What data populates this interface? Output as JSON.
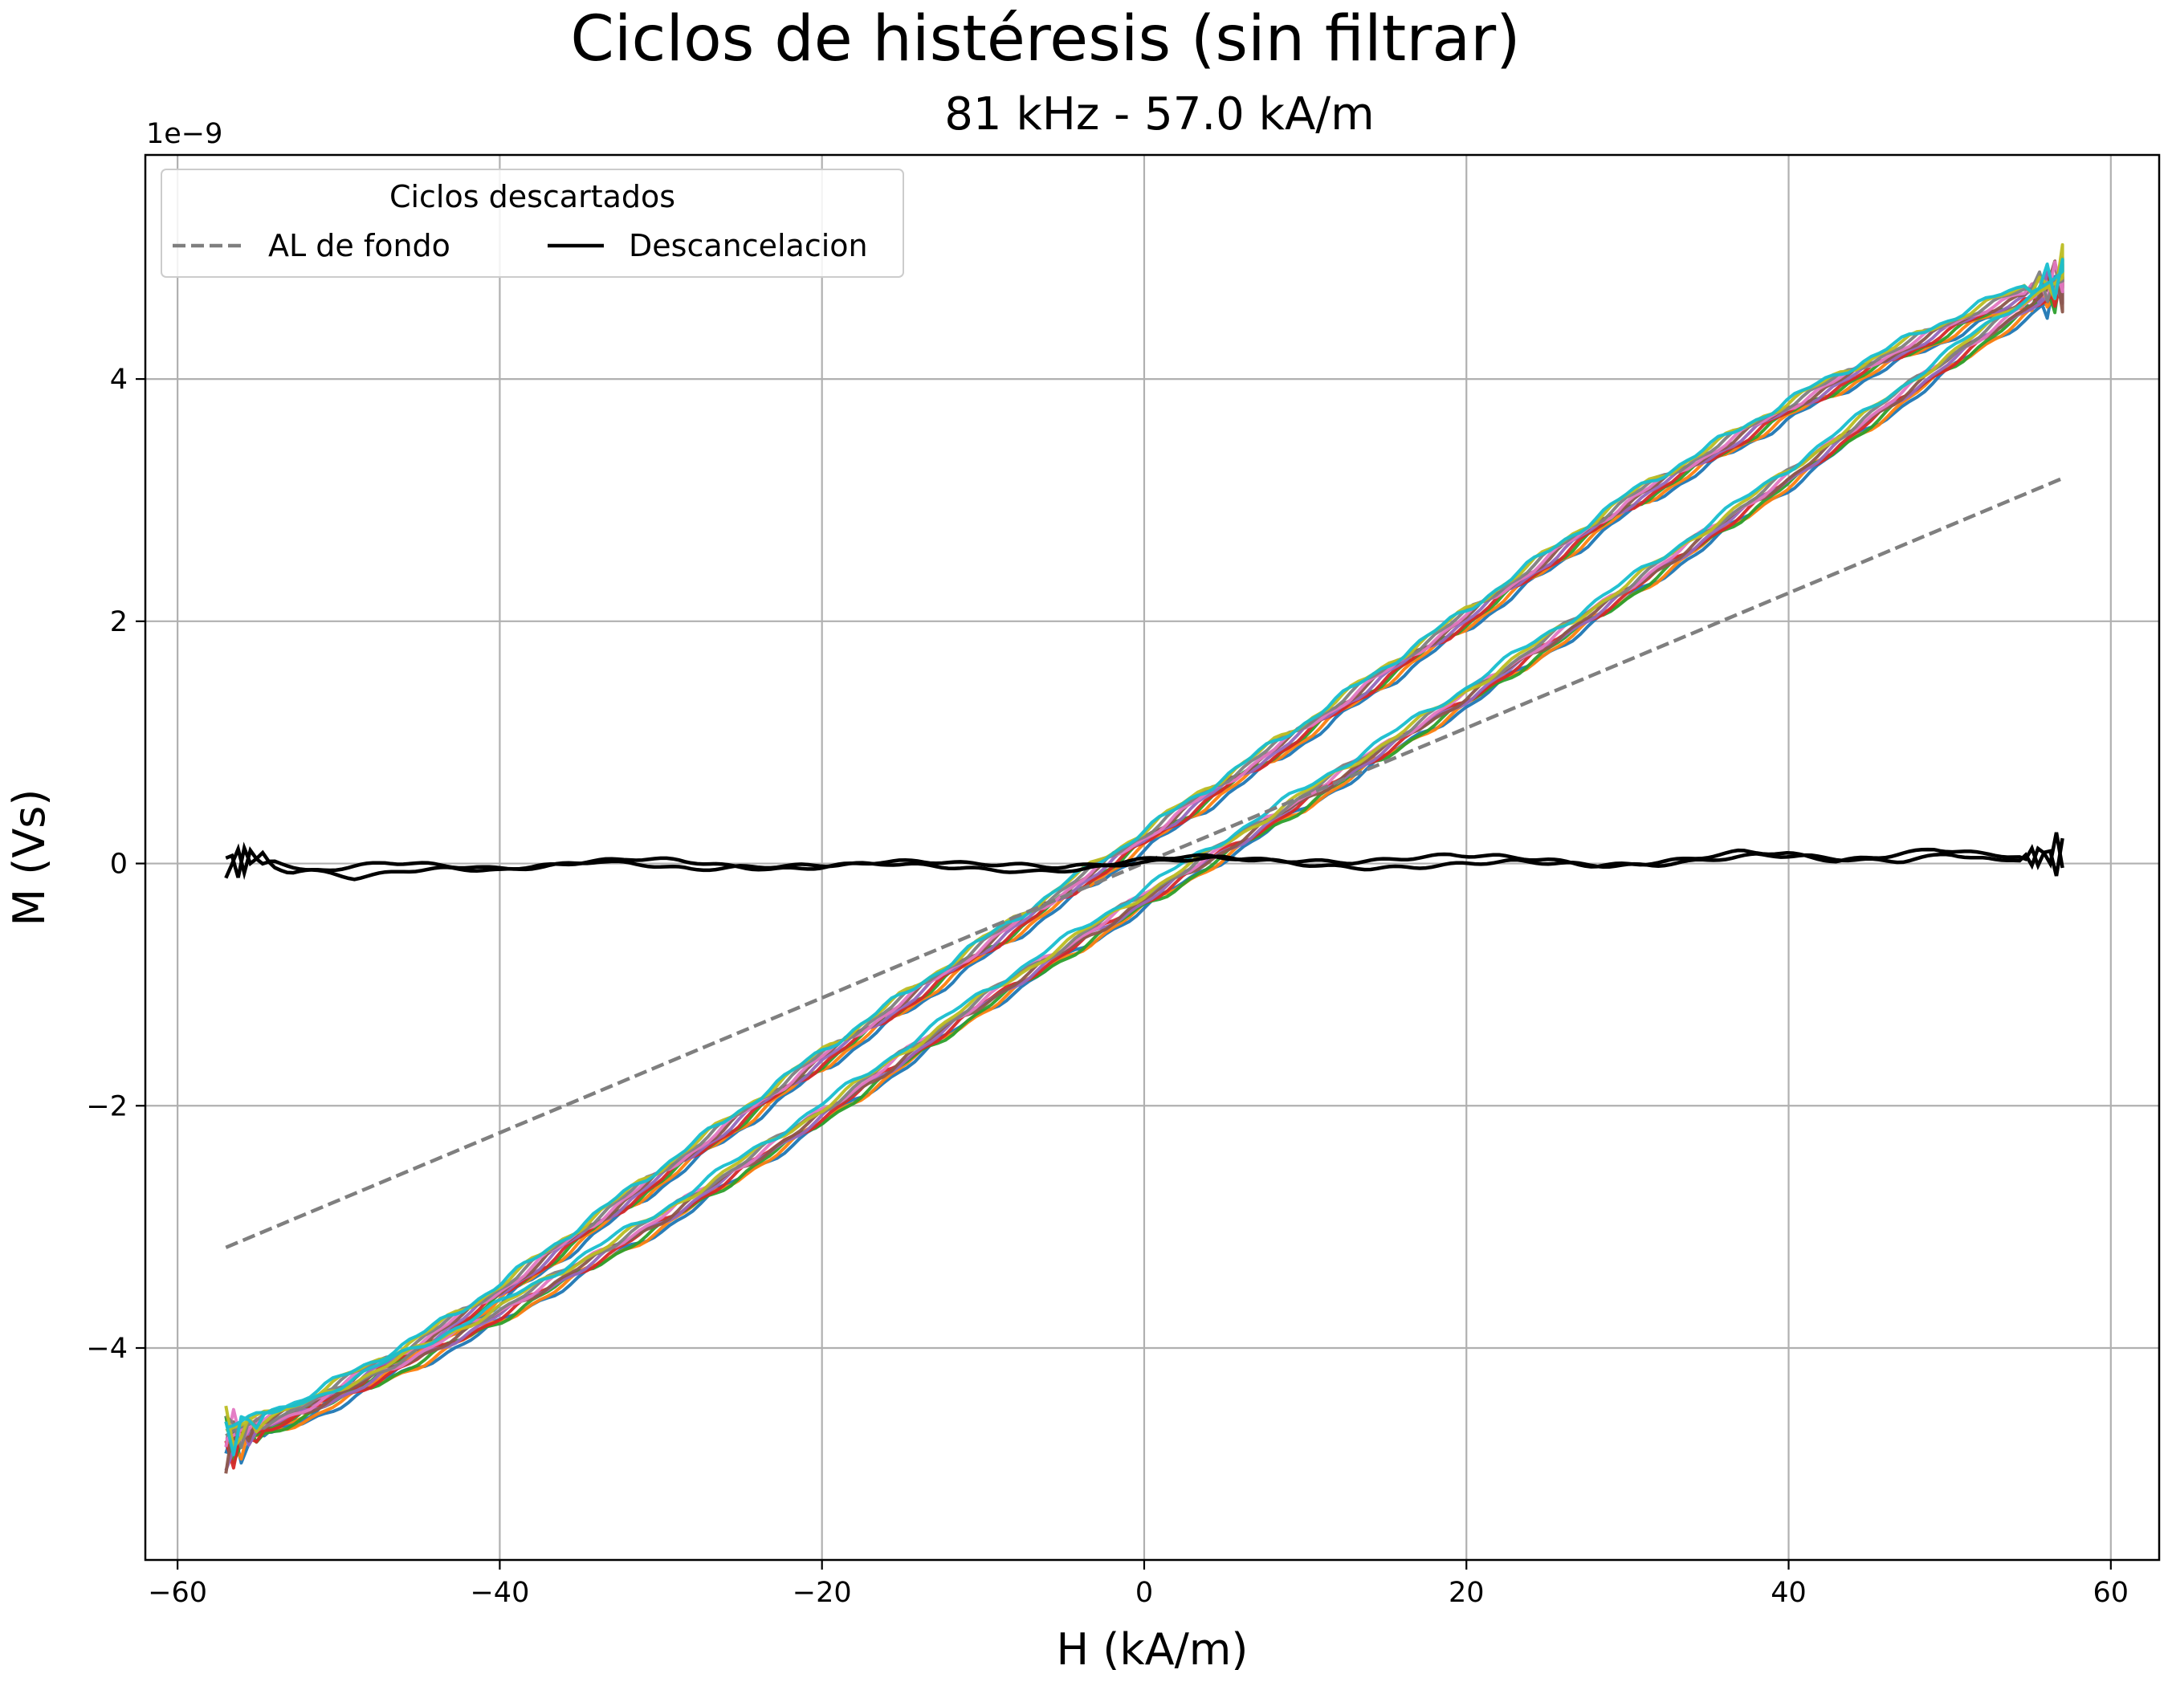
{
  "chart_data": {
    "type": "line",
    "title": "Ciclos de histéresis (sin filtrar)",
    "subtitle": "81 kHz - 57.0 kA/m",
    "xlabel": "H (kA/m)",
    "ylabel": "M (Vs)",
    "y_offset_label": "1e−9",
    "y_scale_exponent": -9,
    "xlim": [
      -62,
      63
    ],
    "ylim": [
      -5.75,
      5.85
    ],
    "x_ticks": [
      -60,
      -40,
      -20,
      0,
      20,
      40,
      60
    ],
    "x_tick_labels": [
      "−60",
      "−40",
      "−20",
      "0",
      "20",
      "40",
      "60"
    ],
    "y_ticks": [
      -4,
      -2,
      0,
      2,
      4
    ],
    "y_tick_labels": [
      "−4",
      "−2",
      "0",
      "2",
      "4"
    ],
    "grid": true,
    "legend": {
      "title": "Ciclos descartados",
      "placement": "top-left",
      "entries": [
        {
          "label": "AL de fondo",
          "style": "dashed",
          "color": "#7f7f7f"
        },
        {
          "label": "Descancelacion",
          "style": "solid",
          "color": "#000000"
        }
      ]
    },
    "h_max": 57.0,
    "series_background": {
      "name": "AL de fondo",
      "color": "#7f7f7f",
      "style": "dashed",
      "x": [
        -57,
        57
      ],
      "y": [
        -3.17,
        3.18
      ]
    },
    "series_descancelacion": {
      "name": "Descancelacion",
      "color": "#000000",
      "branch_up": {
        "x": [
          -57,
          -55,
          -52,
          -49,
          -46,
          -43,
          -40,
          -37,
          -34,
          -31,
          -28,
          -25,
          -22,
          -19,
          -16,
          -13,
          -10,
          -7,
          -4,
          -1,
          2,
          5,
          8,
          11,
          14,
          17,
          20,
          23,
          26,
          29,
          32,
          35,
          38,
          41,
          44,
          47,
          50,
          53,
          55,
          57
        ],
        "y": [
          0.0,
          0.05,
          -0.05,
          -0.12,
          -0.06,
          -0.04,
          -0.06,
          -0.02,
          0.02,
          -0.01,
          -0.05,
          -0.03,
          -0.02,
          -0.01,
          0.0,
          -0.02,
          -0.05,
          -0.07,
          -0.05,
          0.0,
          0.03,
          0.05,
          0.02,
          -0.02,
          -0.04,
          -0.03,
          0.0,
          0.02,
          0.0,
          -0.02,
          -0.01,
          0.03,
          0.07,
          0.06,
          0.03,
          0.02,
          0.08,
          0.02,
          0.05,
          0.1
        ]
      },
      "branch_down": {
        "x": [
          57,
          55,
          52,
          49,
          46,
          43,
          40,
          37,
          34,
          31,
          28,
          25,
          22,
          19,
          16,
          13,
          10,
          7,
          4,
          1,
          -2,
          -5,
          -8,
          -11,
          -14,
          -17,
          -20,
          -23,
          -26,
          -29,
          -32,
          -35,
          -38,
          -41,
          -44,
          -47,
          -50,
          -53,
          -55,
          -57
        ],
        "y": [
          0.05,
          0.05,
          0.08,
          0.12,
          0.06,
          0.02,
          0.08,
          0.1,
          0.04,
          0.0,
          -0.02,
          0.03,
          0.06,
          0.07,
          0.04,
          0.01,
          0.02,
          0.03,
          0.06,
          0.05,
          0.0,
          -0.03,
          -0.01,
          0.0,
          0.02,
          0.01,
          -0.03,
          -0.05,
          -0.02,
          0.03,
          0.04,
          0.01,
          -0.03,
          -0.04,
          -0.01,
          0.01,
          -0.04,
          -0.08,
          0.04,
          0.0
        ]
      }
    },
    "cycles": {
      "count": 10,
      "colors": [
        "#1f77b4",
        "#ff7f0e",
        "#2ca02c",
        "#d62728",
        "#9467bd",
        "#8c564b",
        "#e377c2",
        "#7f7f7f",
        "#bcbd22",
        "#17becf"
      ],
      "ascending_branch": {
        "H": [
          -57,
          -52,
          -45,
          -40,
          -30,
          -20,
          -10,
          0,
          10,
          20,
          30,
          40,
          50,
          57
        ],
        "M": [
          -4.78,
          -4.52,
          -4.07,
          -3.72,
          -2.95,
          -2.08,
          -1.15,
          -0.3,
          0.53,
          1.37,
          2.25,
          3.18,
          4.15,
          4.8
        ]
      },
      "descending_branch": {
        "H": [
          57,
          52,
          45,
          40,
          30,
          20,
          10,
          0,
          -10,
          -20,
          -30,
          -40,
          -45,
          -52,
          -57
        ],
        "M": [
          4.8,
          4.55,
          4.1,
          3.75,
          2.97,
          2.02,
          1.1,
          0.2,
          -0.7,
          -1.62,
          -2.58,
          -3.55,
          -3.98,
          -4.48,
          -4.75
        ]
      }
    }
  }
}
